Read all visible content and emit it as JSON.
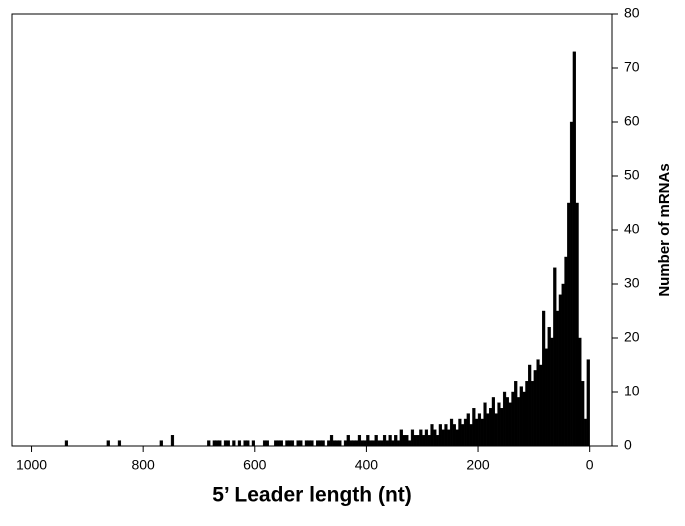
{
  "chart_data": {
    "type": "histogram",
    "xlabel": "5’ Leader length (nt)",
    "ylabel": "Number of mRNAs",
    "color": "#000000",
    "xlim": [
      1035,
      -40
    ],
    "xticks": [
      1000,
      800,
      600,
      400,
      200,
      0
    ],
    "ylim": [
      0,
      80
    ],
    "yticks": [
      0,
      10,
      20,
      30,
      40,
      50,
      60,
      70,
      80
    ],
    "bins": [
      0,
      5,
      10,
      15,
      20,
      25,
      30,
      35,
      40,
      45,
      50,
      55,
      60,
      65,
      70,
      75,
      80,
      85,
      90,
      95,
      100,
      105,
      110,
      115,
      120,
      125,
      130,
      135,
      140,
      145,
      150,
      155,
      160,
      165,
      170,
      175,
      180,
      185,
      190,
      195,
      200,
      205,
      210,
      215,
      220,
      225,
      230,
      235,
      240,
      245,
      250,
      255,
      260,
      265,
      270,
      275,
      280,
      285,
      290,
      295,
      300,
      305,
      310,
      315,
      320,
      325,
      330,
      335,
      340,
      345,
      350,
      355,
      360,
      365,
      370,
      375,
      380,
      385,
      390,
      395,
      400,
      405,
      410,
      415,
      420,
      425,
      430,
      435,
      440,
      445,
      450,
      455,
      460,
      465,
      470,
      475,
      480,
      485,
      490,
      495,
      500,
      505,
      510,
      515,
      520,
      525,
      530,
      535,
      540,
      545,
      550,
      555,
      560,
      565,
      570,
      575,
      580,
      585,
      590,
      595,
      600,
      605,
      610,
      615,
      620,
      625,
      630,
      635,
      640,
      645,
      650,
      655,
      660,
      665,
      670,
      675,
      680,
      685,
      690,
      695,
      700,
      705,
      710,
      715,
      720,
      725,
      730,
      735,
      740,
      745,
      750,
      755,
      760,
      765,
      770,
      775,
      780,
      785,
      790,
      795,
      800,
      805,
      810,
      815,
      820,
      825,
      830,
      835,
      840,
      845,
      850,
      855,
      860,
      865,
      870,
      875,
      880,
      885,
      890,
      895,
      900,
      905,
      910,
      915,
      920,
      925,
      930,
      935,
      940
    ],
    "counts": [
      16,
      5,
      12,
      20,
      45,
      73,
      60,
      45,
      35,
      30,
      28,
      25,
      33,
      20,
      22,
      18,
      25,
      15,
      16,
      14,
      12,
      15,
      12,
      10,
      11,
      9,
      12,
      10,
      8,
      9,
      10,
      7,
      8,
      6,
      9,
      7,
      6,
      8,
      5,
      6,
      5,
      7,
      4,
      6,
      5,
      4,
      5,
      3,
      4,
      5,
      3,
      4,
      3,
      4,
      2,
      3,
      4,
      2,
      3,
      2,
      3,
      2,
      2,
      3,
      1,
      2,
      2,
      3,
      1,
      2,
      1,
      2,
      1,
      2,
      1,
      1,
      2,
      1,
      1,
      2,
      1,
      1,
      2,
      1,
      1,
      1,
      2,
      1,
      0,
      1,
      1,
      1,
      2,
      1,
      0,
      1,
      1,
      1,
      0,
      1,
      1,
      1,
      0,
      1,
      1,
      0,
      1,
      1,
      1,
      0,
      1,
      1,
      1,
      0,
      0,
      1,
      1,
      0,
      0,
      0,
      1,
      0,
      1,
      1,
      0,
      1,
      0,
      1,
      0,
      1,
      1,
      0,
      1,
      1,
      1,
      0,
      1,
      0,
      0,
      0,
      0,
      0,
      0,
      0,
      0,
      0,
      0,
      0,
      0,
      2,
      0,
      0,
      0,
      1,
      0,
      0,
      0,
      0,
      0,
      0,
      0,
      0,
      0,
      0,
      0,
      0,
      0,
      0,
      1,
      0,
      0,
      0,
      1,
      0,
      0,
      0,
      0,
      0,
      0,
      0,
      0,
      0,
      0,
      0,
      0,
      0,
      0,
      1
    ]
  }
}
